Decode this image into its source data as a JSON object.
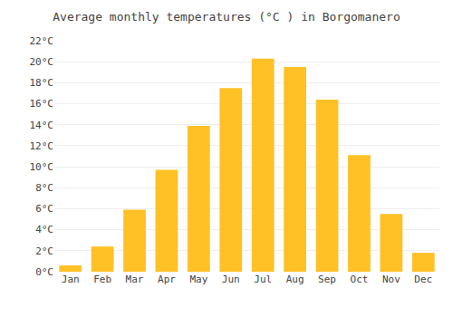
{
  "chart_data": {
    "type": "bar",
    "title": "Average monthly temperatures (°C ) in Borgomanero",
    "categories": [
      "Jan",
      "Feb",
      "Mar",
      "Apr",
      "May",
      "Jun",
      "Jul",
      "Aug",
      "Sep",
      "Oct",
      "Nov",
      "Dec"
    ],
    "values": [
      0.6,
      2.4,
      5.9,
      9.7,
      13.9,
      17.5,
      20.3,
      19.5,
      16.4,
      11.1,
      5.5,
      1.8
    ],
    "color": "#FFC125",
    "ylim": [
      0,
      22
    ],
    "yticks": [
      {
        "value": 0,
        "label": "0°C"
      },
      {
        "value": 2,
        "label": "2°C"
      },
      {
        "value": 4,
        "label": "4°C"
      },
      {
        "value": 6,
        "label": "6°C"
      },
      {
        "value": 8,
        "label": "8°C"
      },
      {
        "value": 10,
        "label": "10°C"
      },
      {
        "value": 12,
        "label": "12°C"
      },
      {
        "value": 14,
        "label": "14°C"
      },
      {
        "value": 16,
        "label": "16°C"
      },
      {
        "value": 18,
        "label": "18°C"
      },
      {
        "value": 20,
        "label": "20°C"
      },
      {
        "value": 22,
        "label": "22°C"
      }
    ],
    "grid": true
  }
}
